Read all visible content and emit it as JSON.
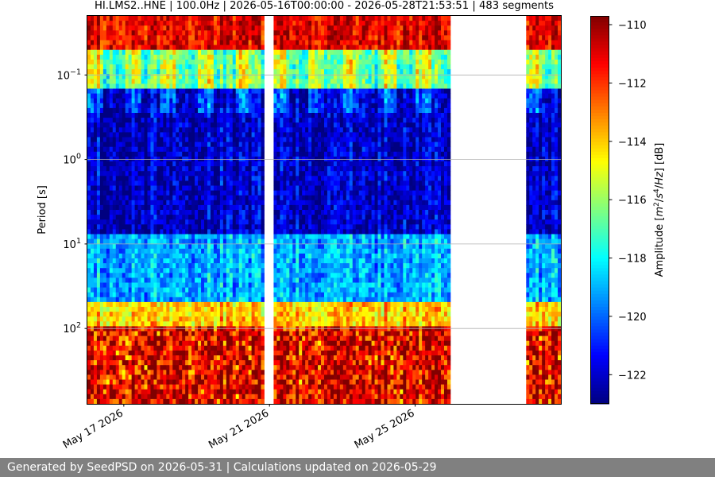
{
  "chart_data": {
    "type": "heatmap",
    "title": "HI.LMS2..HNE | 100.0Hz | 2026-05-16T00:00:00 - 2026-05-28T21:53:51 | 483 segments",
    "ylabel": "Period [s]",
    "y_scale": "log",
    "y_inverted": true,
    "ylim": [
      0.02,
      780
    ],
    "y_ticks": [
      {
        "value": 0.1,
        "label_base": "10",
        "label_exp": "−1"
      },
      {
        "value": 1,
        "label_base": "10",
        "label_exp": "0"
      },
      {
        "value": 10,
        "label_base": "10",
        "label_exp": "1"
      },
      {
        "value": 100,
        "label_base": "10",
        "label_exp": "2"
      }
    ],
    "x_ticks": [
      "May 17 2026",
      "May 21 2026",
      "May 25 2026"
    ],
    "x_tick_dates": [
      "2026-05-17",
      "2026-05-21",
      "2026-05-25"
    ],
    "xlim": [
      "2026-05-16",
      "2026-05-29"
    ],
    "grid": true,
    "colorbar": {
      "label": "Amplitude [m²/s⁴/Hz] [dB]",
      "label_parts": [
        "Amplitude [",
        "m",
        "2",
        "/",
        "s",
        "4",
        "/",
        "Hz",
        "] [dB]"
      ],
      "range": [
        -123,
        -109.7
      ],
      "ticks": [
        "−110",
        "−112",
        "−114",
        "−116",
        "−118",
        "−120",
        "−122"
      ],
      "tick_values": [
        -110,
        -112,
        -114,
        -116,
        -118,
        -120,
        -122
      ],
      "colormap": "jet"
    },
    "data_gaps": [
      {
        "start": "2026-05-20T20:00",
        "end": "2026-05-21T03:00"
      },
      {
        "start": "2026-05-26T00:00",
        "end": "2026-05-28T02:00"
      }
    ],
    "bands": [
      {
        "period_range": [
          0.02,
          0.05
        ],
        "amplitude_db": -111
      },
      {
        "period_range": [
          0.05,
          0.15
        ],
        "amplitude_db": -117
      },
      {
        "period_range": [
          0.15,
          8
        ],
        "amplitude_db": -122
      },
      {
        "period_range": [
          8,
          50
        ],
        "amplitude_db": -119
      },
      {
        "period_range": [
          50,
          100
        ],
        "amplitude_db": -114
      },
      {
        "period_range": [
          100,
          780
        ],
        "amplitude_db": -111
      }
    ]
  },
  "footer": {
    "text": "Generated by SeedPSD on 2026-05-31 | Calculations updated on 2026-05-29"
  }
}
